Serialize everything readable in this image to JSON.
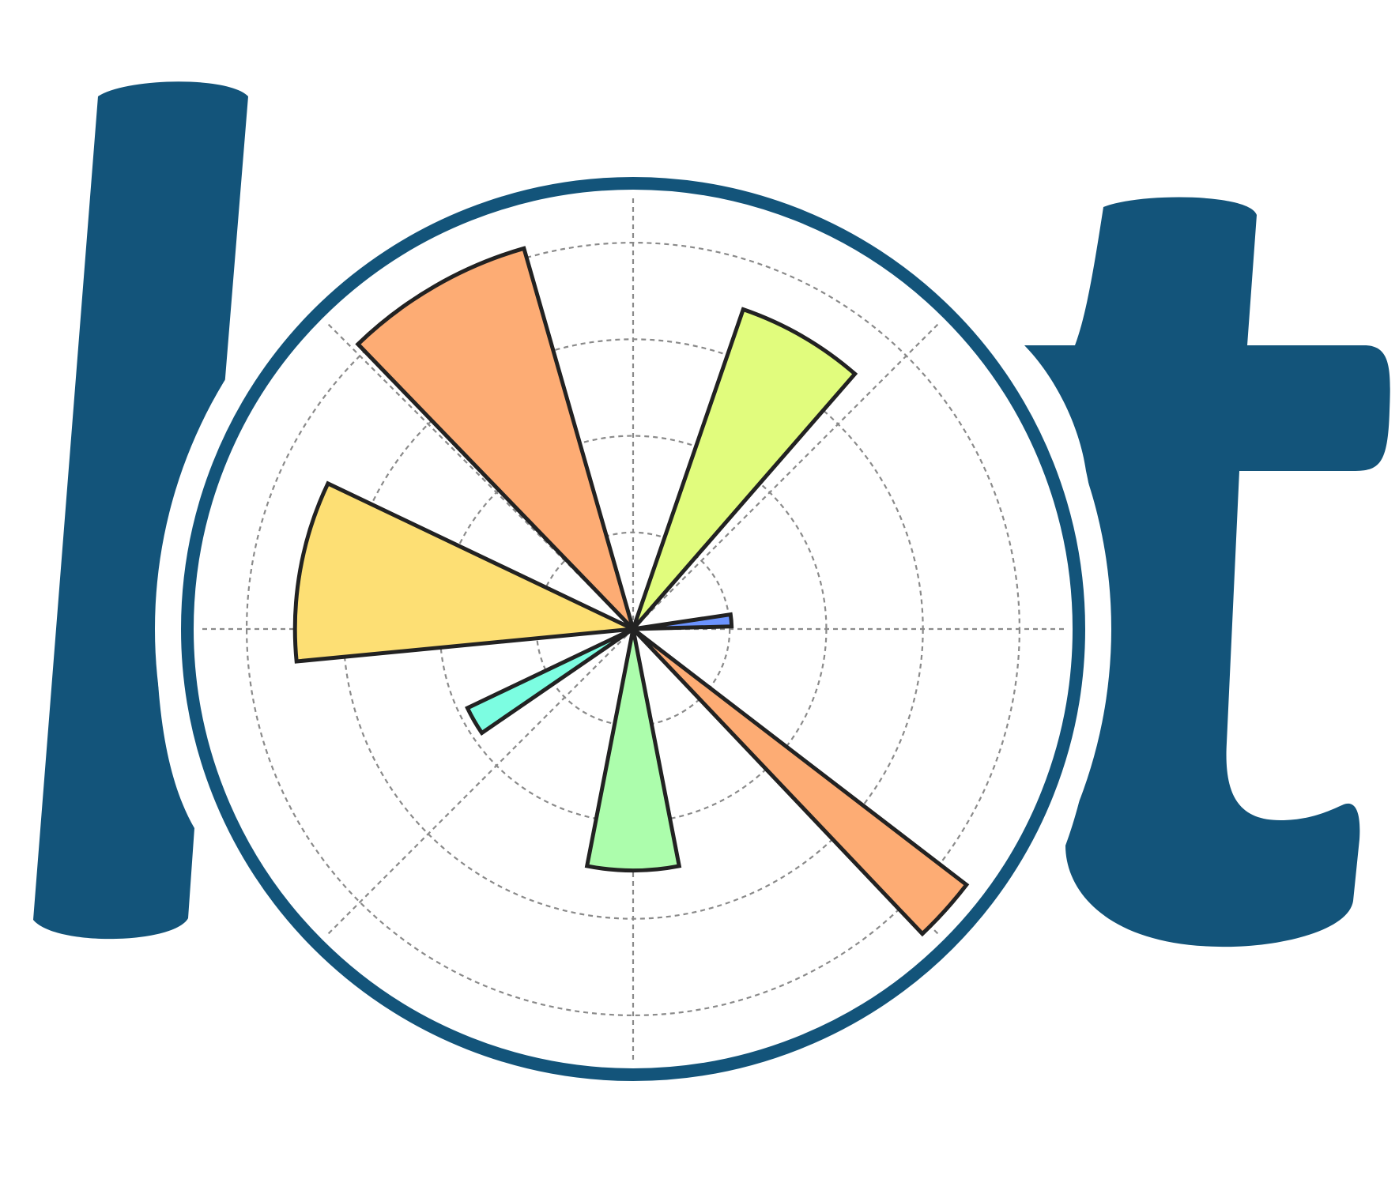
{
  "logo": {
    "letters": [
      "l",
      "t"
    ],
    "brand_color": "#13547a",
    "background_color": "#ffffff",
    "grid_color": "#8a8a8a",
    "wedge_outline_color": "#222222"
  },
  "chart_data": {
    "type": "polar-bar",
    "rlim": [
      0,
      4.5
    ],
    "radial_gridlines": [
      1,
      2,
      3,
      4
    ],
    "angular_gridlines_deg": [
      0,
      45,
      90,
      135,
      180,
      225,
      270,
      315
    ],
    "grid": true,
    "bars": [
      {
        "theta_deg": 5,
        "width_deg": 7,
        "r": 1.02,
        "color": "#6b93ff"
      },
      {
        "theta_deg": 60,
        "width_deg": 22,
        "r": 3.5,
        "color": "#e1fc7d"
      },
      {
        "theta_deg": 120,
        "width_deg": 28,
        "r": 4.1,
        "color": "#fdac74"
      },
      {
        "theta_deg": 170,
        "width_deg": 31,
        "r": 3.5,
        "color": "#fddf74"
      },
      {
        "theta_deg": 210,
        "width_deg": 9,
        "r": 1.9,
        "color": "#7cfde1"
      },
      {
        "theta_deg": 270,
        "width_deg": 22,
        "r": 2.5,
        "color": "#acfdac"
      },
      {
        "theta_deg": 318,
        "width_deg": 9,
        "r": 4.35,
        "color": "#fdac74"
      }
    ]
  }
}
